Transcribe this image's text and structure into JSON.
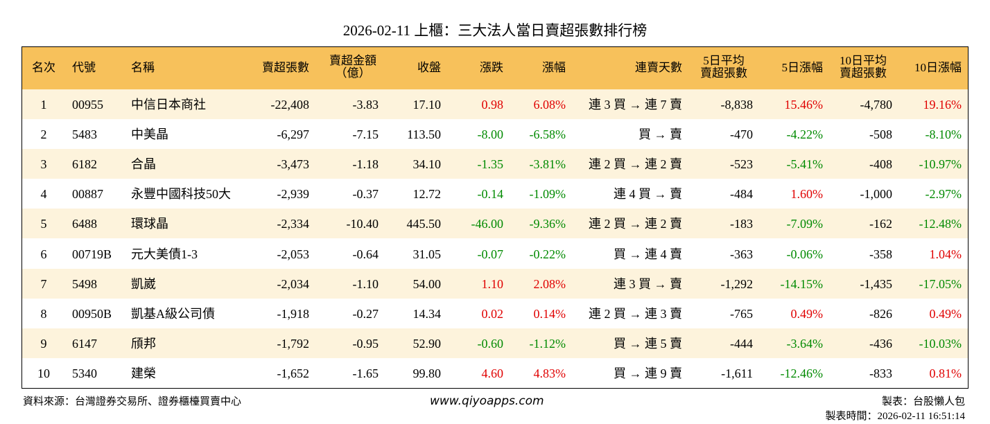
{
  "title": "2026-02-11 上櫃：三大法人當日賣超張數排行榜",
  "table": {
    "header": [
      [
        "名次"
      ],
      [
        "代號"
      ],
      [
        "名稱"
      ],
      [
        "賣超張數"
      ],
      [
        "賣超金額",
        "（億）"
      ],
      [
        "收盤"
      ],
      [
        "漲跌"
      ],
      [
        "漲幅"
      ],
      [
        "連賣天數"
      ],
      [
        "5日平均",
        "賣超張數"
      ],
      [
        "5日漲幅"
      ],
      [
        "10日平均",
        "賣超張數"
      ],
      [
        "10日漲幅"
      ]
    ],
    "rows": [
      [
        "1",
        "00955",
        "中信日本商社",
        "-22,408",
        "-3.83",
        "17.10",
        "0.98",
        "6.08%",
        "連 3 買 → 連 7 賣",
        "-8,838",
        "15.46%",
        "-4,780",
        "19.16%"
      ],
      [
        "2",
        "5483",
        "中美晶",
        "-6,297",
        "-7.15",
        "113.50",
        "-8.00",
        "-6.58%",
        "買 → 賣",
        "-470",
        "-4.22%",
        "-508",
        "-8.10%"
      ],
      [
        "3",
        "6182",
        "合晶",
        "-3,473",
        "-1.18",
        "34.10",
        "-1.35",
        "-3.81%",
        "連 2 買 → 連 2 賣",
        "-523",
        "-5.41%",
        "-408",
        "-10.97%"
      ],
      [
        "4",
        "00887",
        "永豐中國科技50大",
        "-2,939",
        "-0.37",
        "12.72",
        "-0.14",
        "-1.09%",
        "連 4 買 → 賣",
        "-484",
        "1.60%",
        "-1,000",
        "-2.97%"
      ],
      [
        "5",
        "6488",
        "環球晶",
        "-2,334",
        "-10.40",
        "445.50",
        "-46.00",
        "-9.36%",
        "連 2 買 → 連 2 賣",
        "-183",
        "-7.09%",
        "-162",
        "-12.48%"
      ],
      [
        "6",
        "00719B",
        "元大美債1-3",
        "-2,053",
        "-0.64",
        "31.05",
        "-0.07",
        "-0.22%",
        "買 → 連 4 賣",
        "-363",
        "-0.06%",
        "-358",
        "1.04%"
      ],
      [
        "7",
        "5498",
        "凱崴",
        "-2,034",
        "-1.10",
        "54.00",
        "1.10",
        "2.08%",
        "連 3 買 → 賣",
        "-1,292",
        "-14.15%",
        "-1,435",
        "-17.05%"
      ],
      [
        "8",
        "00950B",
        "凱基A級公司債",
        "-1,918",
        "-0.27",
        "14.34",
        "0.02",
        "0.14%",
        "連 2 買 → 連 3 賣",
        "-765",
        "0.49%",
        "-826",
        "0.49%"
      ],
      [
        "9",
        "6147",
        "頎邦",
        "-1,792",
        "-0.95",
        "52.90",
        "-0.60",
        "-1.12%",
        "買 → 連 5 賣",
        "-444",
        "-3.64%",
        "-436",
        "-10.03%"
      ],
      [
        "10",
        "5340",
        "建榮",
        "-1,652",
        "-1.65",
        "99.80",
        "4.60",
        "4.83%",
        "買 → 連 9 賣",
        "-1,611",
        "-12.46%",
        "-833",
        "0.81%"
      ]
    ]
  },
  "footer": {
    "source": "資料來源：台灣證券交易所、證券櫃檯買賣中心",
    "website": "www.qiyoapps.com",
    "maker": "製表：台股懶人包",
    "time": "製表時間：2026-02-11 16:51:14"
  }
}
